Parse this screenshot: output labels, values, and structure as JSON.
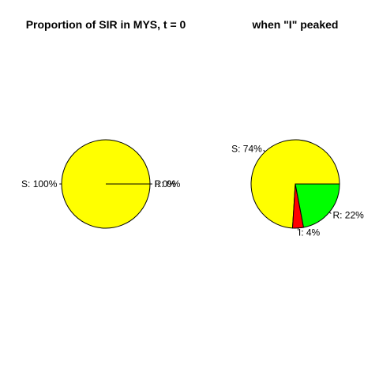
{
  "chart_data": [
    {
      "type": "pie",
      "title": "Proportion of SIR in MYS, t = 0",
      "labels": [
        "S:  100%",
        "I:  0%",
        "R:  0%"
      ],
      "categories": [
        "S",
        "I",
        "R"
      ],
      "values": [
        1.0,
        0.0,
        0.0
      ],
      "colors": [
        "#ffff00",
        "#ff0000",
        "#00ff00"
      ],
      "legend": "none"
    },
    {
      "type": "pie",
      "title": "when \"I\" peaked",
      "labels": [
        "S:  74%",
        "I:  4%",
        "R:  22%"
      ],
      "categories": [
        "S",
        "I",
        "R"
      ],
      "values": [
        0.74,
        0.04,
        0.22
      ],
      "colors": [
        "#ffff00",
        "#ff0000",
        "#00ff00"
      ],
      "legend": "none"
    }
  ]
}
